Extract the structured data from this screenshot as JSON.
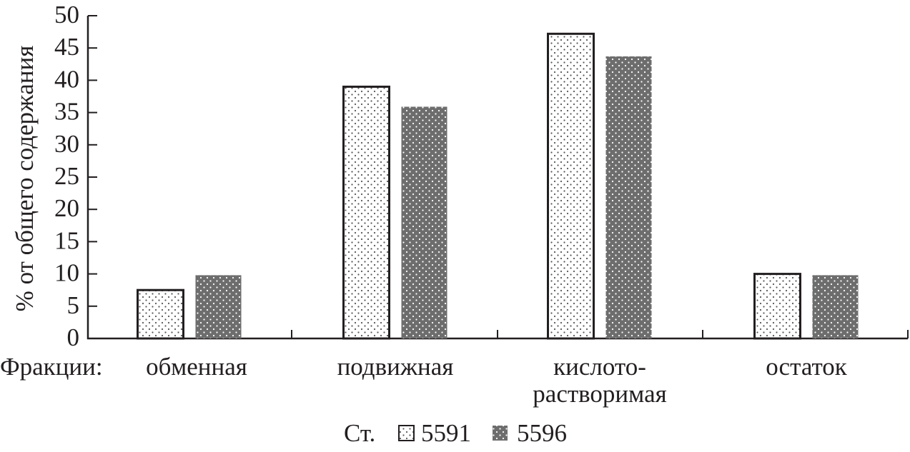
{
  "chart_data": {
    "type": "bar",
    "ylabel": "% от общего содержания",
    "xlabel_prefix": "Фракции:",
    "categories": [
      [
        "обменная"
      ],
      [
        "подвижная"
      ],
      [
        "кислото-",
        "растворимая"
      ],
      [
        "остаток"
      ]
    ],
    "ylim": [
      0,
      50
    ],
    "yticks": [
      0,
      5,
      10,
      15,
      20,
      25,
      30,
      35,
      40,
      45,
      50
    ],
    "grid": false,
    "legend_prefix": "Ст.",
    "legend_placement": "bottom",
    "series": [
      {
        "name": "5591",
        "values": [
          7.5,
          39,
          47.2,
          10
        ],
        "fill": "#ffffff",
        "dot": "#555555",
        "outline": "#231f20"
      },
      {
        "name": "5596",
        "values": [
          9.8,
          35.9,
          43.7,
          9.8
        ],
        "fill": "#6d6d6d",
        "dot": "#ffffff",
        "outline": "none"
      }
    ]
  }
}
